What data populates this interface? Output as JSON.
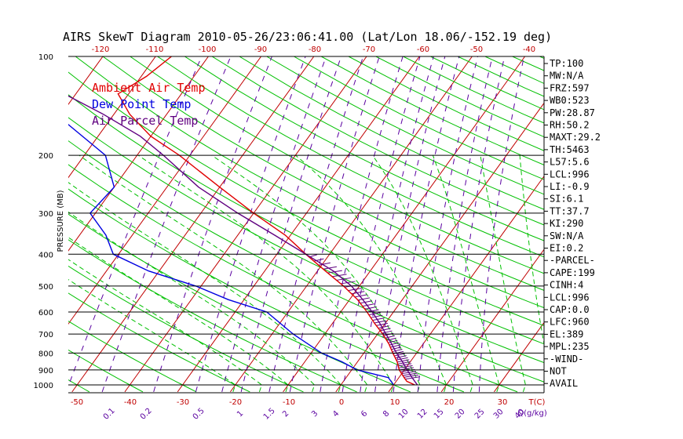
{
  "title": "AIRS SkewT Diagram 2010-05-26/23:06:41.00 (Lat/Lon 18.06/-152.19 deg)",
  "colors": {
    "ambient": "#e00000",
    "dewpoint": "#0000e0",
    "parcel": "#600080",
    "isotherm": "#c00000",
    "dry_adiabat": "#00c000",
    "moist_adiabat": "#00c000",
    "mixing_ratio": "#5a00a0",
    "grid": "#000000",
    "bottom_labels": "#c00000"
  },
  "chart_data": {
    "type": "line",
    "title": "AIRS SkewT Diagram 2010-05-26/23:06:41.00 (Lat/Lon 18.06/-152.19 deg)",
    "ylabel": "PRESSURE (MB)",
    "y_scale": "log",
    "ylim": [
      1050,
      100
    ],
    "pressure_ticks": [
      "100",
      "200",
      "300",
      "400",
      "500",
      "600",
      "700",
      "800",
      "900",
      "1000"
    ],
    "bottom_temp_ticks": [
      "-50",
      "-40",
      "-30",
      "-20",
      "-10",
      "0",
      "10",
      "20",
      "30",
      "T(C)"
    ],
    "top_temp_ticks": [
      "-120",
      "-110",
      "-100",
      "-90",
      "-80",
      "-70",
      "-60",
      "-50",
      "-40"
    ],
    "mixing_ratio_ticks": [
      "0.1",
      "0.2",
      "0.5",
      "1",
      "1.5",
      "2",
      "3",
      "4",
      "6",
      "8",
      "10",
      "12",
      "15",
      "20",
      "25",
      "30",
      "40",
      "Q(g/kg)"
    ],
    "legend": [
      "Ambient Air Temp",
      "Dew Point Temp",
      "Air Parcel Temp"
    ],
    "series": [
      {
        "name": "Ambient Air Temp",
        "points": [
          [
            1000,
            24
          ],
          [
            975,
            22
          ],
          [
            950,
            21
          ],
          [
            900,
            19
          ],
          [
            850,
            17.5
          ],
          [
            800,
            15.5
          ],
          [
            750,
            13.5
          ],
          [
            700,
            11
          ],
          [
            650,
            8
          ],
          [
            600,
            5
          ],
          [
            550,
            1.5
          ],
          [
            500,
            -3
          ],
          [
            450,
            -8.5
          ],
          [
            400,
            -14.5
          ],
          [
            350,
            -21
          ],
          [
            300,
            -30
          ],
          [
            250,
            -40
          ],
          [
            200,
            -52
          ],
          [
            175,
            -60
          ],
          [
            150,
            -67
          ],
          [
            130,
            -72
          ],
          [
            115,
            -69
          ],
          [
            100,
            -67
          ]
        ]
      },
      {
        "name": "Dew Point Temp",
        "points": [
          [
            1000,
            20
          ],
          [
            950,
            18
          ],
          [
            900,
            11
          ],
          [
            850,
            7
          ],
          [
            800,
            2
          ],
          [
            700,
            -6
          ],
          [
            600,
            -14
          ],
          [
            550,
            -23
          ],
          [
            500,
            -31
          ],
          [
            450,
            -42
          ],
          [
            400,
            -51
          ],
          [
            350,
            -55
          ],
          [
            300,
            -61
          ],
          [
            250,
            -60
          ],
          [
            200,
            -66
          ],
          [
            150,
            -81
          ],
          [
            100,
            -93
          ]
        ]
      },
      {
        "name": "Air Parcel Temp",
        "points": [
          [
            1000,
            24.5
          ],
          [
            950,
            22.5
          ],
          [
            900,
            20.5
          ],
          [
            850,
            18.5
          ],
          [
            800,
            16.2
          ],
          [
            750,
            14
          ],
          [
            700,
            11.6
          ],
          [
            650,
            9
          ],
          [
            600,
            6
          ],
          [
            550,
            2.5
          ],
          [
            500,
            -1.5
          ],
          [
            450,
            -7
          ],
          [
            400,
            -14.5
          ],
          [
            350,
            -23
          ],
          [
            300,
            -33
          ],
          [
            250,
            -44
          ],
          [
            200,
            -55
          ],
          [
            175,
            -62
          ],
          [
            150,
            -72
          ],
          [
            125,
            -85
          ],
          [
            100,
            -100
          ]
        ]
      }
    ]
  },
  "stats": [
    "TP:100",
    "MW:N/A",
    "FRZ:597",
    "WB0:523",
    "PW:28.87",
    "RH:50.2",
    "MAXT:29.2",
    "TH:5463",
    "L57:5.6",
    "LCL:996",
    "LI:-0.9",
    "SI:6.1",
    "TT:37.7",
    "KI:290",
    "SW:N/A",
    "EI:0.2",
    "-PARCEL-",
    "CAPE:199",
    "CINH:4",
    "LCL:996",
    "CAP:0.0",
    "LFC:960",
    "EL:389",
    "MPL:235",
    "-WIND-",
    "NOT",
    "AVAIL"
  ]
}
